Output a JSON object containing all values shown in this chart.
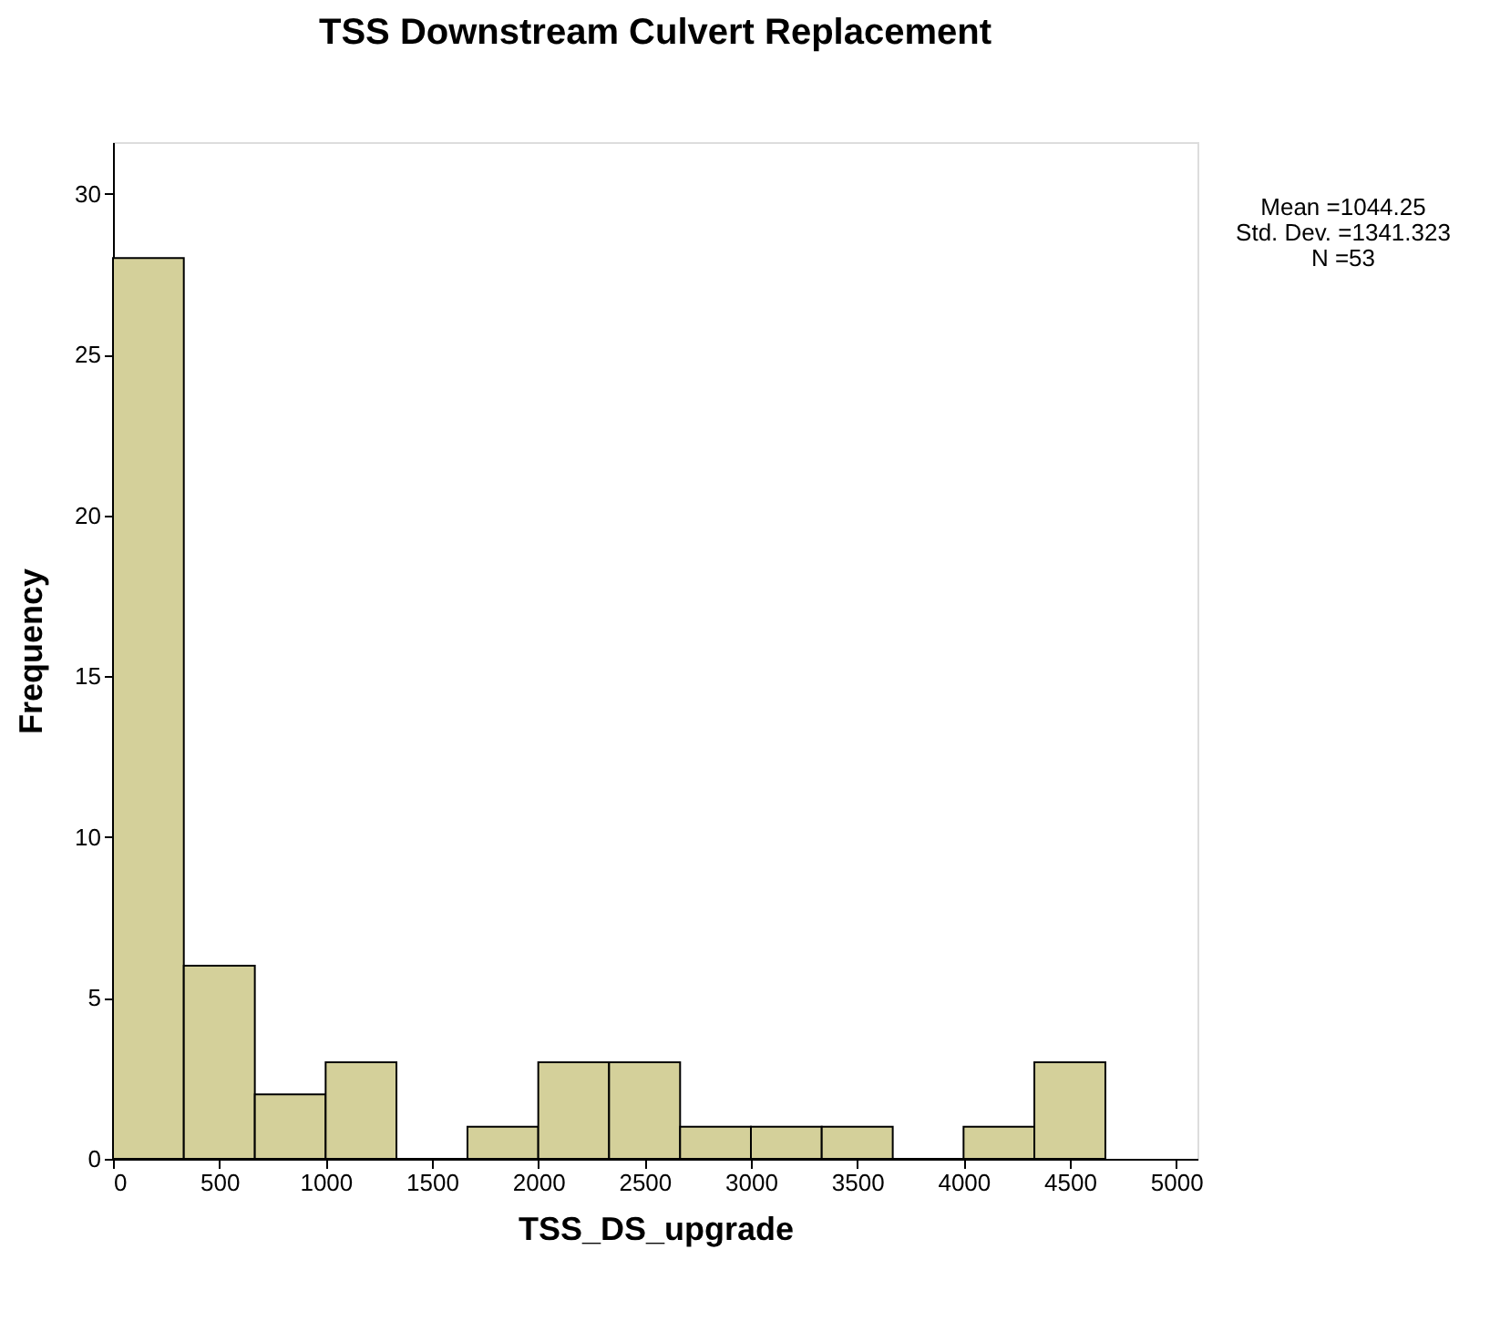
{
  "chart_data": {
    "type": "histogram",
    "title": "TSS Downstream Culvert Replacement",
    "xlabel": "TSS_DS_upgrade",
    "ylabel": "Frequency",
    "bins": [
      0,
      333,
      667,
      1000,
      1333,
      1667,
      2000,
      2333,
      2667,
      3000,
      3333,
      3667,
      4000,
      4333,
      4667
    ],
    "values": [
      28,
      6,
      2,
      3,
      0,
      1,
      3,
      3,
      1,
      1,
      1,
      0,
      1,
      3
    ],
    "color": "#d4d09a",
    "xlim": [
      0,
      5100
    ],
    "xticks": [
      0,
      500,
      1000,
      1500,
      2000,
      2500,
      3000,
      3500,
      4000,
      4500,
      5000
    ],
    "ylim": [
      0,
      31.6
    ],
    "yticks": [
      0,
      5,
      10,
      15,
      20,
      25,
      30
    ],
    "grid": false,
    "annotations": [
      "Mean =1044.25",
      "Std. Dev. =1341.323",
      "N =53"
    ]
  }
}
